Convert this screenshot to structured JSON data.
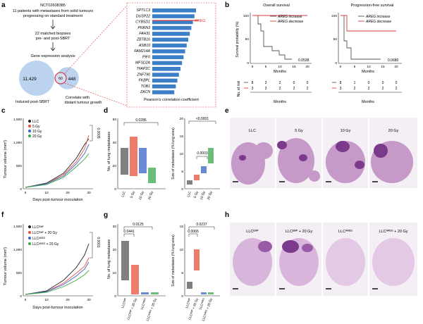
{
  "panel_letters": [
    "a",
    "b",
    "c",
    "d",
    "e",
    "f",
    "g",
    "h"
  ],
  "panel_a": {
    "trial_id": "NCT02608385",
    "line1": "11 patients with metastases from solid tumours",
    "line2": "progressing on standard treatment",
    "biopsy1": "22 matched biopsies",
    "biopsy2": "pre- and post-SBRT",
    "analysis": "Gene expression analysis",
    "venn_left": "11,429",
    "venn_overlap": "60",
    "venn_right": "448",
    "label_left": "Induced post-SBRT",
    "label_right1": "Correlate with",
    "label_right2": "distant tumour growth",
    "genes": [
      "SPTLC3",
      "DUSP22",
      "CYBSD1",
      "PNRN3",
      "FAH31",
      "ZBTB16",
      "ASB10",
      "FAM214A",
      "PIF0",
      "MFSD2A",
      "TFAP2C",
      "ZNF790",
      "FKBPL",
      "TOB1",
      "ZACN"
    ],
    "highlight_gene": "AREG",
    "xlabel": "Pearson's correlation coefficient"
  },
  "panel_b": {
    "left": {
      "title": "Overall survival",
      "ylabel": "Survival probability (%)",
      "p": "0.0538"
    },
    "right": {
      "title": "Progression-free survival",
      "p": "0.0680"
    },
    "legend": [
      "AREG increase",
      "AREG decrease"
    ],
    "xlabel": "Months",
    "atrisk_label": "No. at risk",
    "risk_overall": [
      [
        "8",
        "3",
        "2",
        "0",
        "0"
      ],
      [
        "3",
        "3",
        "2",
        "2",
        "2"
      ]
    ],
    "risk_pfs": [
      [
        "8",
        "1",
        "0",
        "0",
        "0"
      ],
      [
        "3",
        "2",
        "2",
        "2",
        "2"
      ]
    ],
    "xticks": [
      "0",
      "5",
      "10",
      "15",
      "20"
    ],
    "yticks": [
      "100",
      "50",
      "0"
    ]
  },
  "panel_c": {
    "ylabel": "Tumour volume (mm³)",
    "xlabel": "Days post-tumour inoculation",
    "legend": [
      "LLC",
      "5 Gy",
      "10 Gy",
      "20 Gy"
    ],
    "p": "0.0005",
    "xticks": [
      "0",
      "10",
      "20",
      "30"
    ],
    "yticks": [
      "0",
      "500",
      "1,000",
      "1,500"
    ]
  },
  "panel_d": {
    "left_ylabel": "No. of lung metastases",
    "right_ylabel": "Size of metastases (% lung area)",
    "groups": [
      "LLC",
      "5 Gy",
      "10 Gy",
      "20 Gy"
    ],
    "p_left": "0.0286",
    "p_right_a": "<0.0001",
    "p_right_b": "0.0003",
    "left_yticks": [
      "0",
      "20",
      "40",
      "60"
    ],
    "right_yticks": [
      "0",
      "5",
      "10",
      "15",
      "20"
    ]
  },
  "panel_e": {
    "labels": [
      "LLC",
      "5 Gy",
      "10 Gy",
      "20 Gy"
    ]
  },
  "panel_f": {
    "ylabel": "Tumour volume (mm³)",
    "xlabel": "Days post-tumour inoculation",
    "legend": [
      "LLCᴱᴹᴾ",
      "LLCᴱᴹᴾ + 20 Gy",
      "LLCᴬᴿᴱᴳ",
      "LLCᴬᴿᴱᴳ + 20 Gy"
    ],
    "p": "0.0001",
    "xticks": [
      "0",
      "10",
      "20",
      "30"
    ],
    "yticks": [
      "0",
      "500",
      "1,000",
      "1,500"
    ]
  },
  "panel_g": {
    "left_ylabel": "No. of lung metastases",
    "right_ylabel": "Size of metastases (% lung area)",
    "p_left_a": "0.0125",
    "p_left_b": "0.0441",
    "p_right_a": "0.0237",
    "p_right_b": "0.0065",
    "left_yticks": [
      "0",
      "10",
      "20",
      "30"
    ],
    "right_yticks": [
      "0",
      "5",
      "10",
      "15"
    ]
  },
  "panel_h": {
    "labels": [
      "LLCᴱᴹᴾ",
      "LLCᴱᴹᴾ + 20 Gy",
      "LLCᴬᴿᴱᴳ",
      "LLCᴬᴿᴱᴳ + 20 Gy"
    ]
  },
  "colors": {
    "blue_bar": "#3c7fc6",
    "areg_red": "#e03a3a",
    "black": "#222222",
    "red": "#e8503a",
    "blue": "#3a63c8",
    "green": "#3aa84a",
    "venn_blue": "#bcd3ef",
    "histo": "#c59ac9",
    "histo_dark": "#7b3a8c"
  }
}
